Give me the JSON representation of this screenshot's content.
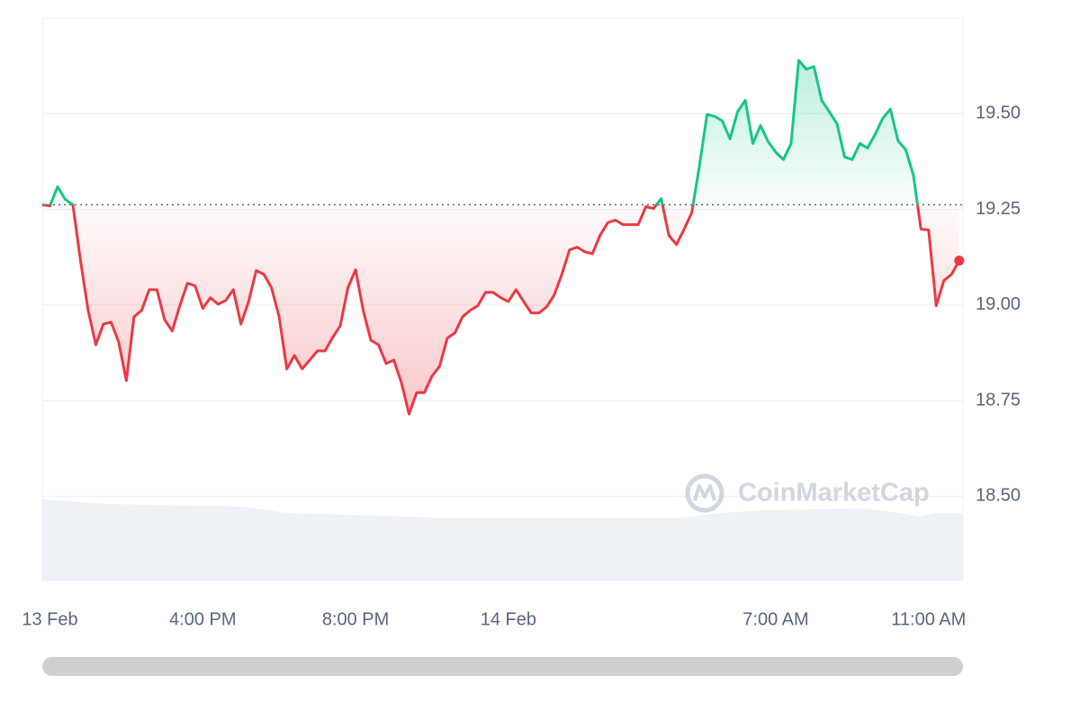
{
  "chart_data": {
    "type": "line",
    "x": [
      0,
      0.2,
      0.4,
      0.6,
      0.8,
      1,
      1.2,
      1.4,
      1.6,
      1.8,
      2,
      2.2,
      2.4,
      2.6,
      2.8,
      3,
      3.2,
      3.4,
      3.6,
      3.8,
      4,
      4.2,
      4.4,
      4.6,
      4.8,
      5,
      5.2,
      5.4,
      5.6,
      5.8,
      6,
      6.2,
      6.4,
      6.6,
      6.8,
      7,
      7.2,
      7.4,
      7.6,
      7.8,
      8,
      8.2,
      8.4,
      8.6,
      8.8,
      9,
      9.2,
      9.4,
      9.6,
      9.8,
      10,
      10.2,
      10.4,
      10.6,
      10.8,
      11,
      11.2,
      11.4,
      11.6,
      11.8,
      12,
      12.2,
      12.4,
      12.6,
      12.8,
      13,
      13.2,
      13.4,
      13.6,
      13.8,
      14,
      14.2,
      14.4,
      14.6,
      14.8,
      15,
      15.2,
      15.4,
      15.6,
      15.8,
      16,
      16.2,
      16.4,
      16.6,
      16.8,
      17,
      17.2,
      17.4,
      17.6,
      17.8,
      18,
      18.2,
      18.4,
      18.6,
      18.8,
      19,
      19.2,
      19.4,
      19.6,
      19.8,
      20,
      20.2,
      20.4,
      20.6,
      20.8,
      21,
      21.2,
      21.4,
      21.6,
      21.8,
      22,
      22.2,
      22.4,
      22.6,
      22.8,
      23,
      23.2,
      23.4,
      23.6,
      23.8,
      24
    ],
    "values": [
      19.262,
      19.259,
      19.309,
      19.276,
      19.262,
      19.116,
      18.986,
      18.896,
      18.95,
      18.955,
      18.903,
      18.802,
      18.969,
      18.986,
      19.04,
      19.04,
      18.962,
      18.932,
      18.998,
      19.057,
      19.05,
      18.991,
      19.019,
      19.002,
      19.012,
      19.04,
      18.95,
      19.009,
      19.09,
      19.08,
      19.045,
      18.969,
      18.833,
      18.868,
      18.833,
      18.856,
      18.88,
      18.88,
      18.915,
      18.946,
      19.045,
      19.092,
      18.986,
      18.908,
      18.896,
      18.847,
      18.856,
      18.797,
      18.715,
      18.771,
      18.771,
      18.814,
      18.84,
      18.913,
      18.927,
      18.969,
      18.986,
      18.998,
      19.033,
      19.033,
      19.019,
      19.009,
      19.04,
      19.009,
      18.979,
      18.979,
      18.995,
      19.026,
      19.08,
      19.144,
      19.151,
      19.139,
      19.134,
      19.182,
      19.215,
      19.222,
      19.21,
      19.21,
      19.21,
      19.257,
      19.252,
      19.278,
      19.182,
      19.158,
      19.198,
      19.241,
      19.363,
      19.498,
      19.493,
      19.481,
      19.434,
      19.505,
      19.535,
      19.422,
      19.469,
      19.427,
      19.399,
      19.38,
      19.422,
      19.639,
      19.616,
      19.623,
      19.535,
      19.505,
      19.474,
      19.387,
      19.38,
      19.422,
      19.41,
      19.446,
      19.488,
      19.512,
      19.429,
      19.406,
      19.34,
      19.198,
      19.196,
      18.998,
      19.064,
      19.08,
      19.116
    ],
    "reference_value": 19.262,
    "color_up": "#16c784",
    "color_down": "#ea3943",
    "xlim": [
      0,
      24.1
    ],
    "xticks": [
      {
        "value": 0.2,
        "label": "13 Feb"
      },
      {
        "value": 4.2,
        "label": "4:00 PM"
      },
      {
        "value": 8.2,
        "label": "8:00 PM"
      },
      {
        "value": 12.2,
        "label": "14 Feb"
      },
      {
        "value": 19.2,
        "label": "7:00 AM"
      },
      {
        "value": 23.2,
        "label": "11:00 AM"
      }
    ],
    "ylim": [
      18.28,
      19.75
    ],
    "yticks": [
      {
        "value": 18.5,
        "label": "18.50"
      },
      {
        "value": 18.75,
        "label": "18.75"
      },
      {
        "value": 19,
        "label": "19.00"
      },
      {
        "value": 19.25,
        "label": "19.25"
      },
      {
        "value": 19.5,
        "label": "19.50"
      }
    ],
    "grid": true,
    "watermark": "CoinMarketCap"
  }
}
